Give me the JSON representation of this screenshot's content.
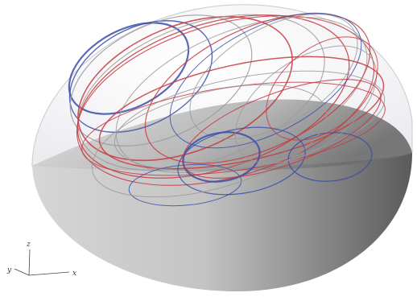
{
  "axes": {
    "x_label": "x",
    "y_label": "y",
    "z_label": "z"
  },
  "colors": {
    "red": "#c63a3f",
    "blue": "#3b4fa8",
    "grey_line": "#9a9a9a",
    "shell_dark": "#5a5a5a",
    "shell_light": "#d9d9d9",
    "cap": "#b8b8b8"
  }
}
